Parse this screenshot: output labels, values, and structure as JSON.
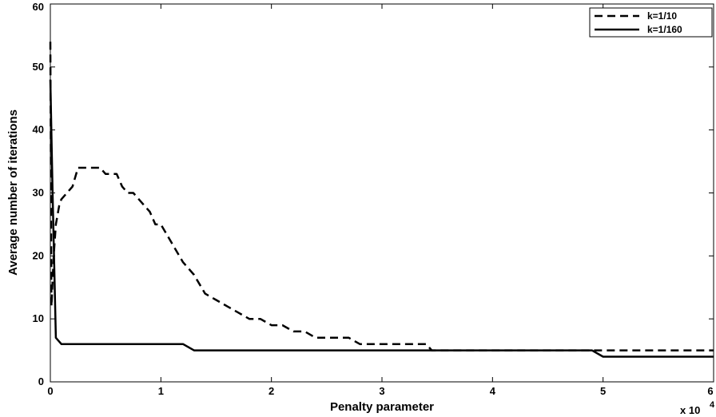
{
  "chart_data": {
    "type": "line",
    "xlabel": "Penalty parameter",
    "ylabel": "Average number of iterations",
    "x_multiplier_base": "x 10",
    "x_multiplier_exp": "4",
    "xlim": [
      0,
      6
    ],
    "ylim": [
      0,
      60
    ],
    "xticks": [
      0,
      1,
      2,
      3,
      4,
      5,
      6
    ],
    "yticks": [
      0,
      10,
      20,
      30,
      40,
      50,
      60
    ],
    "grid": false,
    "legend_position": "top-right",
    "series": [
      {
        "name": "k=1/10",
        "style": "dashed",
        "color": "#000000",
        "x": [
          0,
          0.01,
          0.03,
          0.05,
          0.08,
          0.1,
          0.15,
          0.2,
          0.25,
          0.3,
          0.35,
          0.4,
          0.45,
          0.5,
          0.55,
          0.6,
          0.65,
          0.7,
          0.75,
          0.8,
          0.85,
          0.9,
          0.95,
          1.0,
          1.1,
          1.2,
          1.3,
          1.4,
          1.5,
          1.6,
          1.7,
          1.8,
          1.9,
          2.0,
          2.1,
          2.2,
          2.3,
          2.4,
          2.5,
          2.6,
          2.7,
          2.8,
          2.9,
          3.0,
          3.1,
          3.2,
          3.3,
          3.4,
          3.45,
          3.5,
          4.0,
          4.5,
          5.0,
          5.5,
          6.0
        ],
        "values": [
          54,
          12,
          20,
          25,
          28,
          29,
          30,
          31,
          34,
          34,
          34,
          34,
          34,
          33,
          33,
          33,
          31,
          30,
          30,
          29,
          28,
          27,
          25,
          25,
          22,
          19,
          17,
          14,
          13,
          12,
          11,
          10,
          10,
          9,
          9,
          8,
          8,
          7,
          7,
          7,
          7,
          6,
          6,
          6,
          6,
          6,
          6,
          6,
          5,
          5,
          5,
          5,
          5,
          5,
          5
        ]
      },
      {
        "name": "k=1/160",
        "style": "solid",
        "color": "#000000",
        "x": [
          0,
          0.02,
          0.05,
          0.1,
          0.5,
          1.0,
          1.2,
          1.3,
          2.0,
          3.0,
          4.0,
          4.9,
          5.0,
          5.5,
          6.0
        ],
        "values": [
          48,
          30,
          7,
          6,
          6,
          6,
          6,
          5,
          5,
          5,
          5,
          5,
          4,
          4,
          4
        ]
      }
    ]
  }
}
